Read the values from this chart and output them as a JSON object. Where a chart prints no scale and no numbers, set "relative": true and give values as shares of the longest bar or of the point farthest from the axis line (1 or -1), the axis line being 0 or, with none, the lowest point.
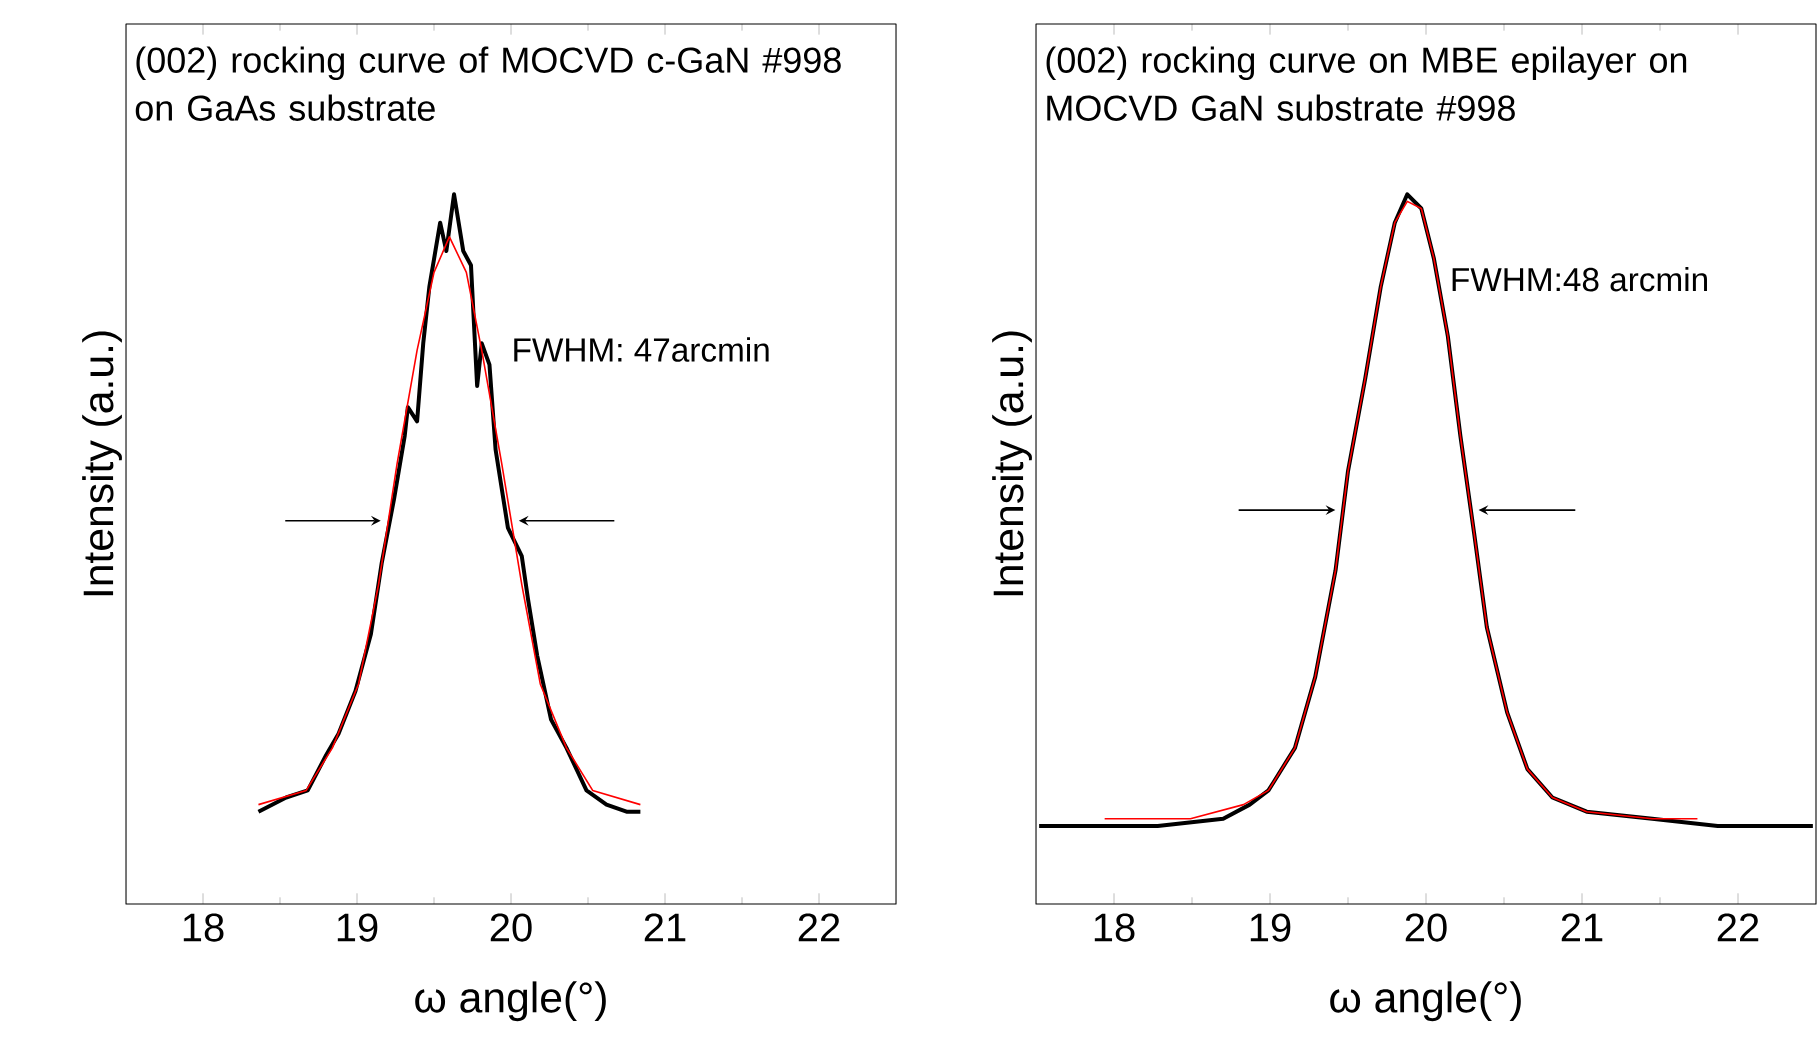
{
  "chart_data": [
    {
      "type": "line",
      "relative": true,
      "xlim": [
        17.5,
        22.5
      ],
      "xticks": [
        18,
        19,
        20,
        21,
        22
      ],
      "xlabel": "ω angle(°)",
      "ylabel": "Intensity (a.u.)",
      "annotations": [
        "(002) rocking curve of MOCVD c-GaN #998 on GaAs substrate",
        "FWHM: 47arcmin"
      ],
      "series": [
        {
          "color": "#000000",
          "x": [
            18.36,
            18.54,
            18.68,
            18.8,
            18.88,
            18.99,
            19.09,
            19.16,
            19.24,
            19.31,
            19.33,
            19.39,
            19.43,
            19.47,
            19.54,
            19.58,
            19.63,
            19.69,
            19.74,
            19.78,
            19.81,
            19.86,
            19.9,
            19.98,
            20.07,
            20.11,
            20.17,
            20.26,
            20.36,
            20.49,
            20.62,
            20.75,
            20.84
          ],
          "values": [
            0.13,
            0.15,
            0.16,
            0.21,
            0.24,
            0.3,
            0.38,
            0.48,
            0.57,
            0.66,
            0.7,
            0.68,
            0.79,
            0.87,
            0.96,
            0.92,
            1.0,
            0.92,
            0.9,
            0.73,
            0.79,
            0.76,
            0.64,
            0.53,
            0.49,
            0.43,
            0.35,
            0.26,
            0.22,
            0.16,
            0.14,
            0.13,
            0.13
          ]
        },
        {
          "color": "#ff0000",
          "x": [
            18.36,
            18.67,
            18.84,
            19.01,
            19.14,
            19.26,
            19.39,
            19.5,
            19.6,
            19.71,
            19.81,
            19.94,
            20.07,
            20.19,
            20.36,
            20.53,
            20.84
          ],
          "values": [
            0.14,
            0.16,
            0.22,
            0.31,
            0.45,
            0.62,
            0.78,
            0.89,
            0.94,
            0.89,
            0.78,
            0.62,
            0.45,
            0.31,
            0.22,
            0.16,
            0.14
          ]
        }
      ]
    },
    {
      "type": "line",
      "relative": true,
      "xlim": [
        17.5,
        22.5
      ],
      "xticks": [
        18,
        19,
        20,
        21,
        22
      ],
      "xlabel": "ω angle(°)",
      "ylabel": "Intensity (a.u.)",
      "annotations": [
        "(002) rocking curve on MBE epilayer on MOCVD GaN substrate #998",
        "FWHM:48 arcmin"
      ],
      "series": [
        {
          "color": "#000000",
          "x": [
            17.52,
            18.28,
            18.7,
            18.87,
            18.99,
            19.16,
            19.29,
            19.42,
            19.5,
            19.61,
            19.71,
            19.8,
            19.88,
            19.97,
            20.05,
            20.14,
            20.22,
            20.31,
            20.39,
            20.52,
            20.65,
            20.81,
            21.03,
            21.45,
            21.87,
            22.48
          ],
          "values": [
            0.11,
            0.11,
            0.12,
            0.14,
            0.16,
            0.22,
            0.32,
            0.47,
            0.61,
            0.74,
            0.87,
            0.96,
            1.0,
            0.98,
            0.91,
            0.8,
            0.66,
            0.52,
            0.39,
            0.27,
            0.19,
            0.15,
            0.13,
            0.12,
            0.11,
            0.11
          ]
        },
        {
          "color": "#ff0000",
          "x": [
            17.94,
            18.49,
            18.83,
            18.99,
            19.16,
            19.29,
            19.42,
            19.5,
            19.61,
            19.71,
            19.8,
            19.88,
            19.97,
            20.05,
            20.14,
            20.22,
            20.31,
            20.39,
            20.52,
            20.65,
            20.81,
            21.03,
            21.45,
            21.74
          ],
          "values": [
            0.12,
            0.12,
            0.14,
            0.16,
            0.22,
            0.32,
            0.47,
            0.61,
            0.74,
            0.87,
            0.96,
            0.99,
            0.98,
            0.91,
            0.8,
            0.66,
            0.52,
            0.39,
            0.27,
            0.19,
            0.15,
            0.13,
            0.12,
            0.12
          ]
        }
      ]
    }
  ]
}
